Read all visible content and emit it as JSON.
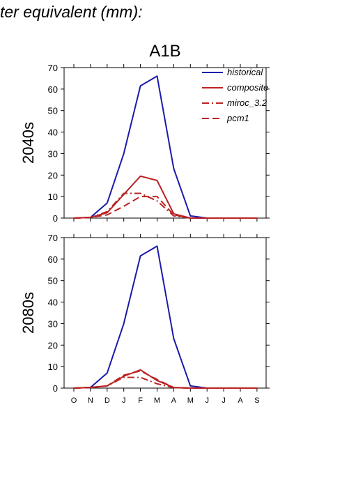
{
  "header": {
    "title": "ter equivalent (mm):"
  },
  "chart_data": {
    "type": "line",
    "title": "A1B",
    "categories": [
      "O",
      "N",
      "D",
      "J",
      "F",
      "M",
      "A",
      "M",
      "J",
      "J",
      "A",
      "S"
    ],
    "ylim": [
      0,
      70
    ],
    "yticks": [
      0,
      10,
      20,
      30,
      40,
      50,
      60,
      70
    ],
    "grid": false,
    "legend": {
      "placement": "top-right",
      "panel": "2040s"
    },
    "colors": {
      "historical": "#1a1aaa",
      "future": "#bb2222"
    },
    "panels": [
      {
        "label": "2040s",
        "series": [
          {
            "name": "historical",
            "style": "solid",
            "color": "#1a1aaa",
            "values": [
              0,
              0.3,
              7,
              30,
              61.5,
              66,
              23,
              1,
              0,
              0,
              0,
              0
            ]
          },
          {
            "name": "composite",
            "style": "solid",
            "color": "#bb2222",
            "values": [
              0,
              0.3,
              2.5,
              11,
              19.5,
              17.5,
              2,
              0,
              0,
              0,
              0,
              0
            ]
          },
          {
            "name": "miroc_3.2",
            "style": "dashdot",
            "color": "#bb2222",
            "values": [
              0,
              0.3,
              3,
              11.5,
              11.5,
              8,
              1,
              0,
              0,
              0,
              0,
              0
            ]
          },
          {
            "name": "pcm1",
            "style": "dashed",
            "color": "#bb2222",
            "values": [
              0,
              0.3,
              1.5,
              5.5,
              10,
              10,
              1.5,
              0,
              0,
              0,
              0,
              0
            ]
          }
        ]
      },
      {
        "label": "2080s",
        "series": [
          {
            "name": "historical",
            "style": "solid",
            "color": "#1a1aaa",
            "values": [
              0,
              0.3,
              7,
              30,
              61.5,
              66,
              23,
              1,
              0,
              0,
              0,
              0
            ]
          },
          {
            "name": "composite",
            "style": "solid",
            "color": "#bb2222",
            "values": [
              0,
              0.3,
              1,
              5.5,
              8.5,
              3.5,
              0.3,
              0,
              0,
              0,
              0,
              0
            ]
          },
          {
            "name": "miroc_3.2",
            "style": "dashdot",
            "color": "#bb2222",
            "values": [
              0,
              0.3,
              1,
              5,
              5,
              2,
              0.2,
              0,
              0,
              0,
              0,
              0
            ]
          },
          {
            "name": "pcm1",
            "style": "dashed",
            "color": "#bb2222",
            "values": [
              0,
              0.3,
              1,
              6,
              8,
              4,
              0.2,
              0,
              0,
              0,
              0,
              0
            ]
          }
        ]
      }
    ]
  }
}
